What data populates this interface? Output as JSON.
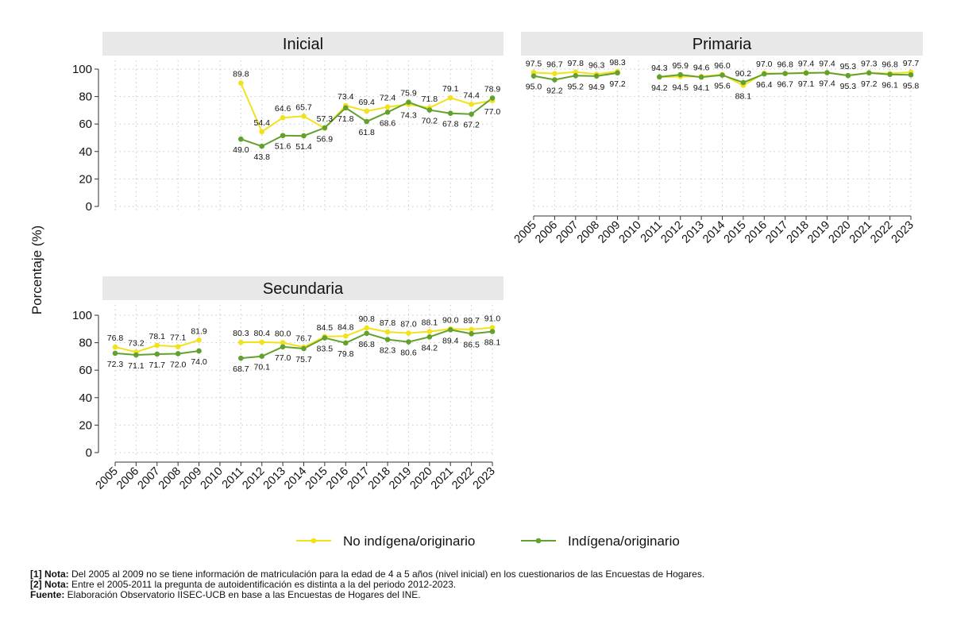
{
  "chart_data": {
    "type": "line",
    "ylabel": "Porcentaje (%)",
    "ylim": [
      0,
      100
    ],
    "yticks": [
      0,
      20,
      40,
      60,
      80,
      100
    ],
    "x": [
      "2005",
      "2006",
      "2007",
      "2008",
      "2009",
      "2010",
      "2011",
      "2012",
      "2013",
      "2014",
      "2015",
      "2016",
      "2017",
      "2018",
      "2019",
      "2020",
      "2021",
      "2022",
      "2023"
    ],
    "colors": {
      "no_indigena": "#f2e21c",
      "indigena": "#63a12e",
      "panel_header": "#e8e8e8"
    },
    "legend": [
      "No indígena/originario",
      "Indígena/originario"
    ],
    "panels": [
      {
        "title": "Inicial",
        "series": [
          {
            "name": "No indígena/originario",
            "values": [
              null,
              null,
              null,
              null,
              null,
              null,
              89.8,
              54.4,
              64.6,
              65.7,
              56.9,
              73.4,
              69.4,
              72.4,
              74.3,
              71.8,
              79.1,
              74.4,
              77.0
            ]
          },
          {
            "name": "Indígena/originario",
            "values": [
              null,
              null,
              null,
              null,
              null,
              null,
              49.0,
              43.8,
              51.6,
              51.4,
              57.3,
              71.8,
              61.8,
              68.6,
              75.9,
              70.2,
              67.8,
              67.2,
              78.9
            ]
          }
        ]
      },
      {
        "title": "Primaria",
        "series": [
          {
            "name": "No indígena/originario",
            "values": [
              97.5,
              96.7,
              97.8,
              96.3,
              98.3,
              null,
              94.2,
              94.5,
              94.6,
              96.0,
              88.1,
              97.0,
              96.7,
              97.4,
              97.4,
              95.3,
              97.3,
              96.8,
              97.7
            ]
          },
          {
            "name": "Indígena/originario",
            "values": [
              95.0,
              92.2,
              95.2,
              94.9,
              97.2,
              null,
              94.3,
              95.9,
              94.1,
              95.6,
              90.2,
              96.4,
              96.8,
              97.1,
              97.4,
              95.3,
              97.2,
              96.1,
              95.8
            ]
          }
        ]
      },
      {
        "title": "Secundaria",
        "series": [
          {
            "name": "No indígena/originario",
            "values": [
              76.8,
              73.2,
              78.1,
              77.1,
              81.9,
              null,
              80.3,
              80.4,
              80.0,
              76.7,
              84.5,
              84.8,
              90.8,
              87.8,
              87.0,
              88.1,
              90.0,
              89.7,
              91.0
            ]
          },
          {
            "name": "Indígena/originario",
            "values": [
              72.3,
              71.1,
              71.7,
              72.0,
              74.0,
              null,
              68.7,
              70.1,
              77.0,
              75.7,
              83.5,
              79.8,
              86.8,
              82.3,
              80.6,
              84.2,
              89.4,
              86.5,
              88.1
            ]
          }
        ]
      }
    ]
  },
  "notes": {
    "note1_label": "[1] Nota:",
    "note1_text": " Del 2005 al 2009 no se tiene información de matriculación para la edad de 4 a 5 años (nivel inicial) en los cuestionarios de las Encuestas de Hogares.",
    "note2_label": "[2] Nota:",
    "note2_text": " Entre el 2005-2011 la pregunta de autoidentificación es distinta a la del periodo 2012-2023.",
    "source_label": "Fuente:",
    "source_text": " Elaboración Observatorio IISEC-UCB en base a las Encuestas de Hogares del INE."
  }
}
